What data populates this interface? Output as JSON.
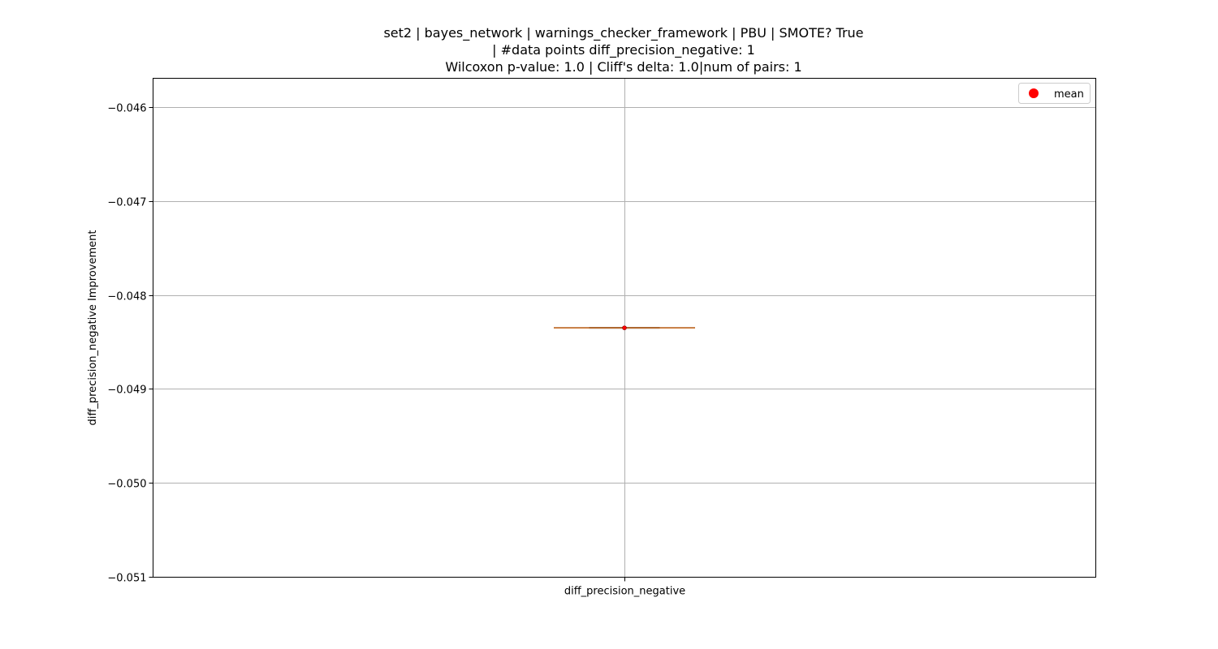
{
  "chart_data": {
    "type": "box",
    "title_lines": [
      "set2 | bayes_network | warnings_checker_framework | PBU | SMOTE? True",
      "| #data points diff_precision_negative: 1",
      "Wilcoxon p-value: 1.0 | Cliff's delta: 1.0|num of pairs: 1"
    ],
    "xlabel": "",
    "ylabel": "diff_precision_negative Improvement",
    "categories": [
      "diff_precision_negative"
    ],
    "ylim": [
      -0.051,
      -0.0457
    ],
    "yticks": [
      -0.046,
      -0.047,
      -0.048,
      -0.049,
      -0.05,
      -0.051
    ],
    "ytick_labels": [
      "−0.046",
      "−0.047",
      "−0.048",
      "−0.049",
      "−0.050",
      "−0.051"
    ],
    "boxes": [
      {
        "category": "diff_precision_negative",
        "q1": -0.04835,
        "median": -0.04835,
        "q3": -0.04835,
        "whisker_low": -0.04835,
        "whisker_high": -0.04835,
        "mean": -0.04835
      }
    ],
    "legend": {
      "position": "top-right",
      "entries": [
        {
          "label": "mean",
          "marker": "circle",
          "color": "#ff0000"
        }
      ]
    },
    "grid": true,
    "colors": {
      "median": "#e8873a",
      "box": "#000000",
      "mean_marker": "#ff0000",
      "grid": "#b0b0b0"
    }
  }
}
